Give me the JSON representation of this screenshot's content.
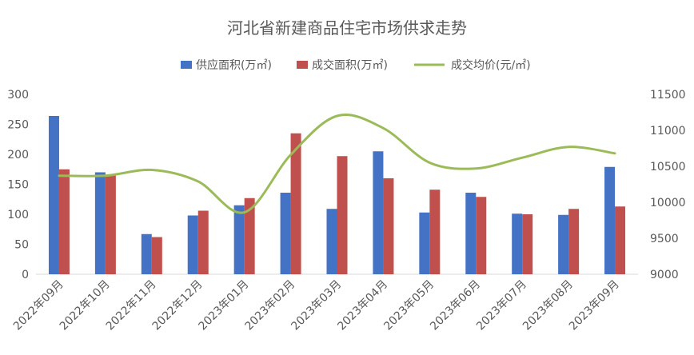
{
  "chart_data": {
    "type": "bar",
    "title": "河北省新建商品住宅市场供求走势",
    "categories": [
      "2022年09月",
      "2022年10月",
      "2022年11月",
      "2022年12月",
      "2023年01月",
      "2023年02月",
      "2023年03月",
      "2023年04月",
      "2023年05月",
      "2023年06月",
      "2023年07月",
      "2023年08月",
      "2023年09月"
    ],
    "series": [
      {
        "name": "供应面积(万㎡)",
        "type": "bar",
        "axis": "left",
        "color": "#4472C4",
        "values": [
          264,
          170,
          67,
          98,
          115,
          136,
          109,
          205,
          103,
          136,
          101,
          99,
          179
        ]
      },
      {
        "name": "成交面积(万㎡)",
        "type": "bar",
        "axis": "left",
        "color": "#C0504D",
        "values": [
          175,
          166,
          62,
          106,
          127,
          235,
          197,
          160,
          141,
          129,
          100,
          109,
          113
        ]
      },
      {
        "name": "成交均价(元/㎡)",
        "type": "line",
        "axis": "right",
        "color": "#9BBB59",
        "values": [
          10370,
          10370,
          10450,
          10290,
          9860,
          10660,
          11200,
          11030,
          10550,
          10470,
          10620,
          10770,
          10680
        ]
      }
    ],
    "y_left": {
      "min": 0,
      "max": 300,
      "ticks": [
        "0",
        "50",
        "100",
        "150",
        "200",
        "250",
        "300"
      ]
    },
    "y_right": {
      "min": 9000,
      "max": 11500,
      "ticks": [
        "9000",
        "9500",
        "10000",
        "10500",
        "11000",
        "11500"
      ]
    },
    "grid": false,
    "legend_position": "top"
  }
}
